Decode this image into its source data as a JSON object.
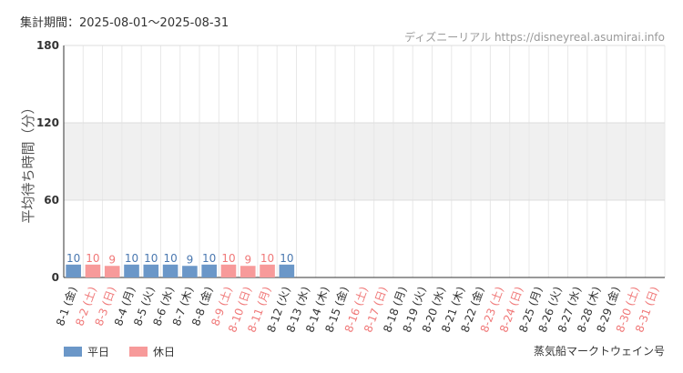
{
  "header": {
    "period_text": "集計期間：2025-08-01～2025-08-31",
    "credit_text": "ディズニーリアル https://disneyreal.asumirai.info"
  },
  "footer": {
    "attraction_name": "蒸気船マークトウェイン号"
  },
  "colors": {
    "weekday": "#6b97c8",
    "holiday": "#f79a9a",
    "weekday_label": "#4a78b0",
    "holiday_label": "#f07878",
    "band": "#f0f0f0",
    "grid": "#e8e8e8"
  },
  "chart_data": {
    "type": "bar",
    "ylabel": "平均待ち時間（分）",
    "ylim": [
      0,
      180
    ],
    "yticks": [
      0,
      60,
      120,
      180
    ],
    "grid": true,
    "shaded_band": [
      60,
      120
    ],
    "legend_position": "bottom-left",
    "series": [
      {
        "name": "平日",
        "color": "#6b97c8"
      },
      {
        "name": "休日",
        "color": "#f79a9a"
      }
    ],
    "categories": [
      "8-1 (金)",
      "8-2 (土)",
      "8-3 (日)",
      "8-4 (月)",
      "8-5 (火)",
      "8-6 (水)",
      "8-7 (木)",
      "8-8 (金)",
      "8-9 (土)",
      "8-10 (日)",
      "8-11 (月)",
      "8-12 (火)",
      "8-13 (水)",
      "8-14 (木)",
      "8-15 (金)",
      "8-16 (土)",
      "8-17 (日)",
      "8-18 (月)",
      "8-19 (火)",
      "8-20 (水)",
      "8-21 (木)",
      "8-22 (金)",
      "8-23 (土)",
      "8-24 (日)",
      "8-25 (月)",
      "8-26 (火)",
      "8-27 (水)",
      "8-28 (木)",
      "8-29 (金)",
      "8-30 (土)",
      "8-31 (日)"
    ],
    "values": [
      10,
      10,
      9,
      10,
      10,
      10,
      9,
      10,
      10,
      9,
      10,
      10,
      null,
      null,
      null,
      null,
      null,
      null,
      null,
      null,
      null,
      null,
      null,
      null,
      null,
      null,
      null,
      null,
      null,
      null,
      null
    ],
    "day_type": [
      "平日",
      "休日",
      "休日",
      "平日",
      "平日",
      "平日",
      "平日",
      "平日",
      "休日",
      "休日",
      "休日",
      "平日",
      "平日",
      "平日",
      "平日",
      "休日",
      "休日",
      "平日",
      "平日",
      "平日",
      "平日",
      "平日",
      "休日",
      "休日",
      "平日",
      "平日",
      "平日",
      "平日",
      "平日",
      "休日",
      "休日"
    ]
  }
}
